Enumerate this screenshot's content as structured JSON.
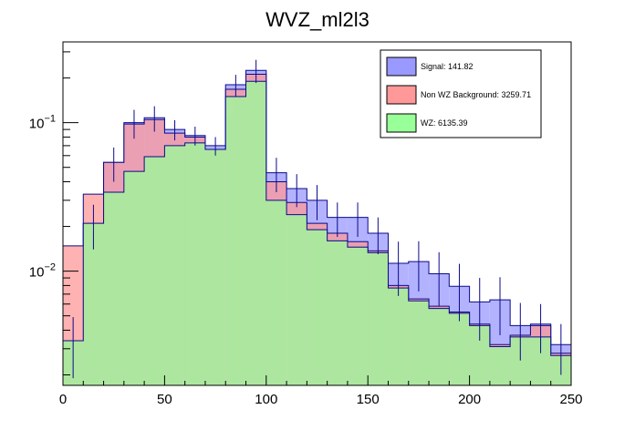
{
  "chart_data": {
    "type": "stacked-histogram",
    "title": "WVZ_ml2l3",
    "xlabel": "",
    "ylabel": "",
    "xlim": [
      0,
      250
    ],
    "ylim": [
      0.0017,
      0.35
    ],
    "yscale": "log",
    "bin_edges": [
      0,
      10,
      20,
      30,
      40,
      50,
      60,
      70,
      80,
      90,
      100,
      110,
      120,
      130,
      140,
      150,
      160,
      170,
      180,
      190,
      200,
      210,
      220,
      230,
      240,
      250
    ],
    "x_ticks": [
      "0",
      "50",
      "100",
      "150",
      "200",
      "250"
    ],
    "y_ticks": [
      {
        "value": 0.1,
        "base": "10",
        "exp": "−1"
      },
      {
        "value": 0.01,
        "base": "10",
        "exp": "−2"
      }
    ],
    "legend_position": "top-right",
    "series": [
      {
        "name": "WZ",
        "legend": "WZ: 6135.39",
        "color": "#99ff99",
        "values": [
          0.0034,
          0.021,
          0.034,
          0.047,
          0.059,
          0.07,
          0.073,
          0.066,
          0.15,
          0.19,
          0.03,
          0.024,
          0.019,
          0.016,
          0.0145,
          0.0133,
          0.0077,
          0.0063,
          0.0056,
          0.0052,
          0.0043,
          0.0031,
          0.0036,
          0.0036,
          0.0027
        ]
      },
      {
        "name": "Non WZ Background",
        "legend": "Non WZ Background: 3259.71",
        "color": "#ff9999",
        "values": [
          0.0148,
          0.033,
          0.054,
          0.098,
          0.105,
          0.085,
          0.08,
          0.066,
          0.168,
          0.212,
          0.04,
          0.029,
          0.021,
          0.018,
          0.0158,
          0.0137,
          0.008,
          0.0065,
          0.0058,
          0.0053,
          0.0044,
          0.0032,
          0.0037,
          0.0043,
          0.0028
        ]
      },
      {
        "name": "Signal",
        "legend": "Signal: 141.82",
        "color": "#9999ff",
        "values": [
          0.0034,
          0.021,
          0.054,
          0.1,
          0.108,
          0.09,
          0.082,
          0.07,
          0.18,
          0.225,
          0.046,
          0.036,
          0.03,
          0.023,
          0.023,
          0.018,
          0.0113,
          0.0116,
          0.0096,
          0.0079,
          0.0062,
          0.0064,
          0.0043,
          0.0044,
          0.0032
        ]
      }
    ],
    "error_bar_halfwidths": [
      0.0015,
      0.007,
      0.014,
      0.022,
      0.021,
      0.014,
      0.012,
      0.01,
      0.03,
      0.04,
      0.012,
      0.009,
      0.008,
      0.006,
      0.006,
      0.005,
      0.0045,
      0.0043,
      0.0038,
      0.0033,
      0.0028,
      0.0027,
      0.0018,
      0.0016,
      0.0012
    ]
  }
}
